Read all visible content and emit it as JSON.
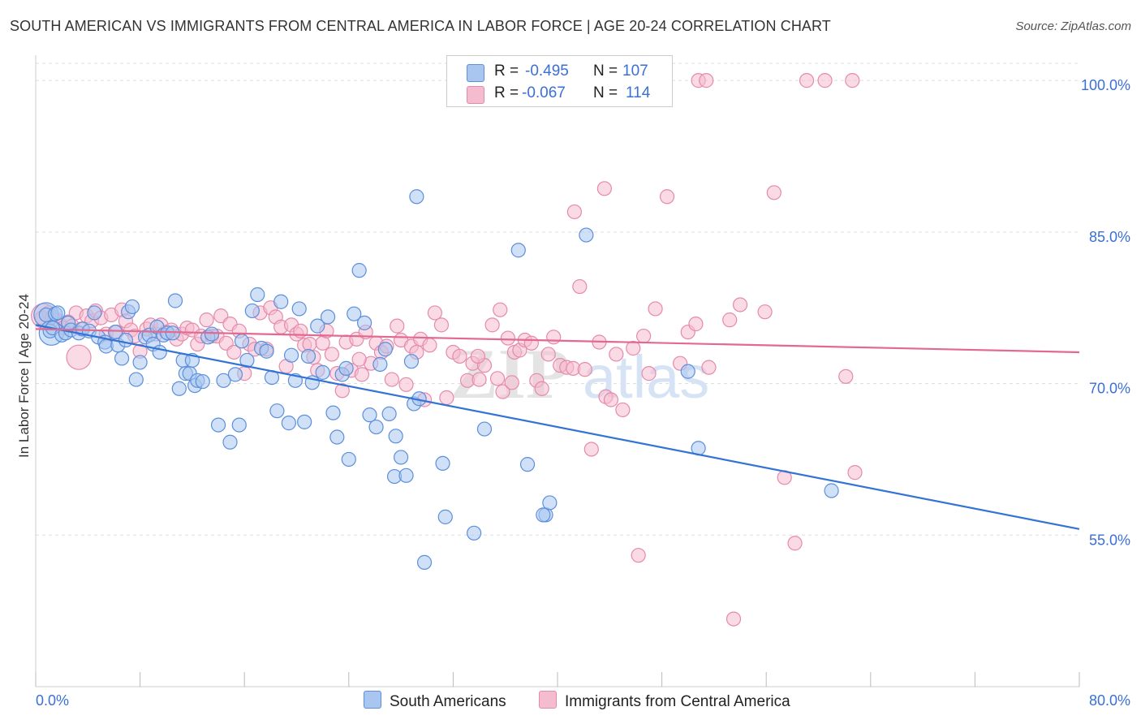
{
  "title": "SOUTH AMERICAN VS IMMIGRANTS FROM CENTRAL AMERICA IN LABOR FORCE | AGE 20-24 CORRELATION CHART",
  "source": "Source: ZipAtlas.com",
  "watermark": "ZIPatlas",
  "legend": {
    "rows": [
      {
        "r_label": "R =",
        "r_value": "-0.495",
        "n_label": "N =",
        "n_value": "107"
      },
      {
        "r_label": "R =",
        "r_value": "-0.067",
        "n_label": "N =",
        "n_value": "114"
      }
    ]
  },
  "bottom_legend": {
    "blue": "South Americans",
    "pink": "Immigrants from Central America"
  },
  "chart_data": {
    "type": "scatter",
    "ylabel": "In Labor Force | Age 20-24",
    "xlim": [
      0,
      80
    ],
    "ylim": [
      40,
      102.5
    ],
    "x_ticks": [
      "0.0%",
      "80.0%"
    ],
    "y_ticks": [
      {
        "value": 55,
        "label": "55.0%"
      },
      {
        "value": 70,
        "label": "70.0%"
      },
      {
        "value": 85,
        "label": "85.0%"
      },
      {
        "value": 100,
        "label": "100.0%"
      }
    ],
    "colors": {
      "blue_fill": "#a8c6f0",
      "blue_stroke": "#5b8fdc",
      "blue_line": "#3373d6",
      "pink_fill": "#f5bcd0",
      "pink_stroke": "#e58aab",
      "pink_line": "#e2698f",
      "tick_label": "#3a6fd8",
      "grid": "#dddddd"
    },
    "series": [
      {
        "name": "South Americans",
        "color": "blue",
        "trend": {
          "x0": 0,
          "y0": 75.8,
          "x1": 80,
          "y1": 55.6
        },
        "points": [
          [
            0.8,
            76.8
          ],
          [
            1.1,
            75.2
          ],
          [
            1.3,
            75.5
          ],
          [
            1.5,
            76.9
          ],
          [
            1.7,
            77.0
          ],
          [
            2.0,
            74.8
          ],
          [
            2.3,
            75.0
          ],
          [
            2.5,
            76.0
          ],
          [
            2.7,
            75.3
          ],
          [
            3.3,
            75.0
          ],
          [
            3.6,
            75.4
          ],
          [
            4.1,
            75.2
          ],
          [
            4.5,
            77.0
          ],
          [
            4.8,
            74.6
          ],
          [
            5.3,
            74.1
          ],
          [
            5.4,
            73.7
          ],
          [
            6.1,
            75.1
          ],
          [
            6.3,
            73.8
          ],
          [
            6.6,
            72.5
          ],
          [
            6.9,
            74.3
          ],
          [
            7.1,
            77.1
          ],
          [
            7.4,
            77.6
          ],
          [
            7.7,
            70.4
          ],
          [
            8.0,
            72.1
          ],
          [
            8.4,
            74.6
          ],
          [
            8.7,
            74.8
          ],
          [
            9.0,
            73.9
          ],
          [
            9.3,
            75.6
          ],
          [
            9.5,
            73.1
          ],
          [
            9.8,
            74.8
          ],
          [
            10.1,
            75.0
          ],
          [
            10.5,
            75.0
          ],
          [
            10.7,
            78.2
          ],
          [
            11.0,
            69.5
          ],
          [
            11.3,
            72.3
          ],
          [
            11.5,
            71.0
          ],
          [
            11.8,
            71.0
          ],
          [
            12.0,
            72.3
          ],
          [
            12.2,
            69.8
          ],
          [
            12.4,
            70.3
          ],
          [
            12.8,
            70.2
          ],
          [
            13.2,
            74.6
          ],
          [
            13.5,
            74.9
          ],
          [
            14.0,
            65.9
          ],
          [
            14.4,
            70.3
          ],
          [
            14.9,
            64.2
          ],
          [
            15.3,
            70.9
          ],
          [
            15.6,
            65.9
          ],
          [
            15.8,
            74.2
          ],
          [
            16.2,
            72.3
          ],
          [
            16.6,
            77.2
          ],
          [
            17.0,
            78.8
          ],
          [
            17.3,
            73.5
          ],
          [
            17.7,
            73.2
          ],
          [
            18.1,
            70.6
          ],
          [
            18.5,
            67.3
          ],
          [
            18.8,
            78.1
          ],
          [
            19.4,
            66.1
          ],
          [
            19.6,
            72.8
          ],
          [
            19.9,
            70.3
          ],
          [
            20.2,
            77.4
          ],
          [
            20.6,
            66.2
          ],
          [
            20.9,
            72.7
          ],
          [
            21.2,
            70.1
          ],
          [
            21.6,
            75.7
          ],
          [
            22.0,
            71.1
          ],
          [
            22.4,
            76.6
          ],
          [
            22.8,
            67.1
          ],
          [
            23.1,
            64.7
          ],
          [
            23.5,
            70.9
          ],
          [
            23.8,
            71.5
          ],
          [
            24.0,
            62.5
          ],
          [
            24.4,
            76.9
          ],
          [
            24.8,
            81.2
          ],
          [
            25.2,
            76.0
          ],
          [
            25.6,
            66.9
          ],
          [
            26.1,
            65.7
          ],
          [
            26.4,
            71.9
          ],
          [
            26.8,
            73.4
          ],
          [
            27.1,
            67.0
          ],
          [
            27.5,
            60.8
          ],
          [
            27.6,
            64.8
          ],
          [
            28.0,
            62.7
          ],
          [
            28.4,
            60.9
          ],
          [
            28.8,
            72.2
          ],
          [
            29.0,
            68.0
          ],
          [
            29.2,
            88.5
          ],
          [
            29.4,
            68.5
          ],
          [
            31.2,
            62.1
          ],
          [
            31.4,
            56.8
          ],
          [
            29.8,
            52.3
          ],
          [
            33.6,
            55.2
          ],
          [
            34.4,
            65.5
          ],
          [
            37.0,
            83.2
          ],
          [
            37.7,
            62.0
          ],
          [
            39.1,
            57.0
          ],
          [
            39.4,
            58.2
          ],
          [
            38.9,
            57.0
          ],
          [
            42.2,
            84.7
          ],
          [
            50.0,
            71.2
          ],
          [
            50.8,
            63.6
          ],
          [
            61.0,
            59.4
          ]
        ],
        "large_points": [
          [
            0.8,
            76.8
          ],
          [
            1.2,
            75.0
          ]
        ]
      },
      {
        "name": "Immigrants from Central America",
        "color": "pink",
        "trend": {
          "x0": 0,
          "y0": 75.4,
          "x1": 80,
          "y1": 73.1
        },
        "points": [
          [
            0.5,
            76.5
          ],
          [
            1.0,
            77.0
          ],
          [
            1.3,
            76.6
          ],
          [
            1.6,
            76.3
          ],
          [
            1.9,
            75.8
          ],
          [
            2.1,
            75.5
          ],
          [
            2.5,
            76.1
          ],
          [
            2.8,
            75.7
          ],
          [
            3.1,
            77.0
          ],
          [
            3.5,
            75.4
          ],
          [
            3.9,
            76.7
          ],
          [
            4.3,
            76.2
          ],
          [
            4.6,
            77.2
          ],
          [
            5.0,
            76.5
          ],
          [
            5.4,
            74.9
          ],
          [
            5.8,
            76.8
          ],
          [
            6.2,
            75.1
          ],
          [
            6.6,
            77.3
          ],
          [
            6.9,
            76.2
          ],
          [
            7.3,
            75.3
          ],
          [
            7.6,
            74.7
          ],
          [
            8.0,
            73.2
          ],
          [
            8.5,
            75.4
          ],
          [
            8.8,
            75.8
          ],
          [
            9.2,
            74.9
          ],
          [
            9.6,
            75.8
          ],
          [
            10.0,
            75.1
          ],
          [
            10.4,
            75.3
          ],
          [
            10.8,
            74.4
          ],
          [
            11.2,
            74.9
          ],
          [
            11.6,
            75.5
          ],
          [
            12.0,
            75.3
          ],
          [
            12.4,
            73.9
          ],
          [
            12.7,
            74.7
          ],
          [
            13.1,
            76.3
          ],
          [
            13.5,
            74.7
          ],
          [
            13.9,
            74.7
          ],
          [
            14.2,
            76.7
          ],
          [
            14.6,
            74.0
          ],
          [
            14.9,
            75.9
          ],
          [
            15.2,
            73.1
          ],
          [
            15.6,
            75.2
          ],
          [
            16.0,
            71.0
          ],
          [
            16.4,
            73.9
          ],
          [
            16.8,
            73.4
          ],
          [
            17.2,
            77.0
          ],
          [
            17.7,
            73.4
          ],
          [
            18.0,
            77.5
          ],
          [
            18.4,
            76.6
          ],
          [
            18.8,
            75.6
          ],
          [
            19.2,
            71.7
          ],
          [
            19.6,
            75.8
          ],
          [
            20.0,
            74.9
          ],
          [
            20.3,
            75.2
          ],
          [
            20.6,
            73.8
          ],
          [
            21.0,
            73.9
          ],
          [
            21.3,
            72.6
          ],
          [
            21.6,
            71.3
          ],
          [
            22.0,
            74.0
          ],
          [
            22.3,
            75.2
          ],
          [
            22.7,
            72.9
          ],
          [
            23.1,
            71.0
          ],
          [
            23.5,
            69.3
          ],
          [
            23.8,
            74.1
          ],
          [
            24.2,
            71.3
          ],
          [
            24.6,
            74.4
          ],
          [
            25.0,
            70.9
          ],
          [
            25.3,
            75.1
          ],
          [
            25.7,
            72.0
          ],
          [
            26.1,
            74.0
          ],
          [
            26.5,
            73.1
          ],
          [
            26.9,
            73.7
          ],
          [
            27.3,
            70.4
          ],
          [
            27.7,
            75.7
          ],
          [
            28.0,
            74.3
          ],
          [
            28.4,
            69.9
          ],
          [
            28.8,
            73.7
          ],
          [
            29.2,
            73.1
          ],
          [
            29.5,
            74.4
          ],
          [
            29.8,
            68.4
          ],
          [
            30.2,
            73.8
          ],
          [
            30.6,
            77.0
          ],
          [
            31.1,
            75.8
          ],
          [
            31.5,
            68.6
          ],
          [
            32.0,
            73.1
          ],
          [
            32.5,
            72.7
          ],
          [
            33.1,
            70.3
          ],
          [
            33.5,
            72.0
          ],
          [
            34.0,
            70.4
          ],
          [
            34.4,
            71.8
          ],
          [
            35.0,
            75.8
          ],
          [
            35.4,
            70.5
          ],
          [
            35.8,
            69.2
          ],
          [
            36.2,
            74.5
          ],
          [
            36.7,
            73.1
          ],
          [
            37.1,
            73.3
          ],
          [
            37.5,
            74.3
          ],
          [
            38.0,
            74.0
          ],
          [
            38.4,
            70.3
          ],
          [
            38.8,
            69.5
          ],
          [
            39.3,
            72.9
          ],
          [
            39.7,
            74.6
          ],
          [
            40.2,
            71.8
          ],
          [
            40.7,
            71.6
          ],
          [
            41.2,
            71.5
          ],
          [
            41.7,
            79.6
          ],
          [
            42.1,
            71.4
          ],
          [
            42.6,
            63.5
          ],
          [
            43.2,
            74.1
          ],
          [
            43.7,
            68.7
          ],
          [
            44.1,
            68.4
          ],
          [
            44.5,
            72.9
          ],
          [
            45.0,
            67.4
          ],
          [
            46.2,
            53.0
          ],
          [
            45.8,
            73.5
          ],
          [
            46.6,
            74.7
          ],
          [
            47.0,
            71.0
          ],
          [
            47.5,
            77.4
          ],
          [
            48.4,
            88.5
          ],
          [
            50.0,
            75.1
          ],
          [
            50.6,
            75.9
          ],
          [
            51.6,
            71.6
          ],
          [
            53.2,
            76.3
          ],
          [
            54.0,
            77.8
          ],
          [
            55.9,
            77.1
          ],
          [
            57.4,
            60.7
          ],
          [
            58.2,
            54.2
          ],
          [
            62.1,
            70.7
          ],
          [
            62.8,
            61.2
          ],
          [
            62.6,
            100.0
          ],
          [
            45.2,
            100.0
          ],
          [
            50.8,
            100.0
          ],
          [
            51.4,
            100.0
          ],
          [
            59.1,
            100.0
          ],
          [
            60.5,
            100.0
          ],
          [
            24.8,
            72.4
          ],
          [
            33.9,
            72.7
          ],
          [
            35.6,
            77.3
          ],
          [
            36.5,
            70.1
          ],
          [
            41.3,
            87.0
          ],
          [
            43.6,
            89.3
          ],
          [
            53.5,
            46.7
          ],
          [
            56.6,
            88.9
          ],
          [
            49.4,
            72.0
          ]
        ],
        "large_points": [
          [
            0.6,
            76.7
          ],
          [
            3.3,
            72.6
          ]
        ]
      }
    ]
  }
}
